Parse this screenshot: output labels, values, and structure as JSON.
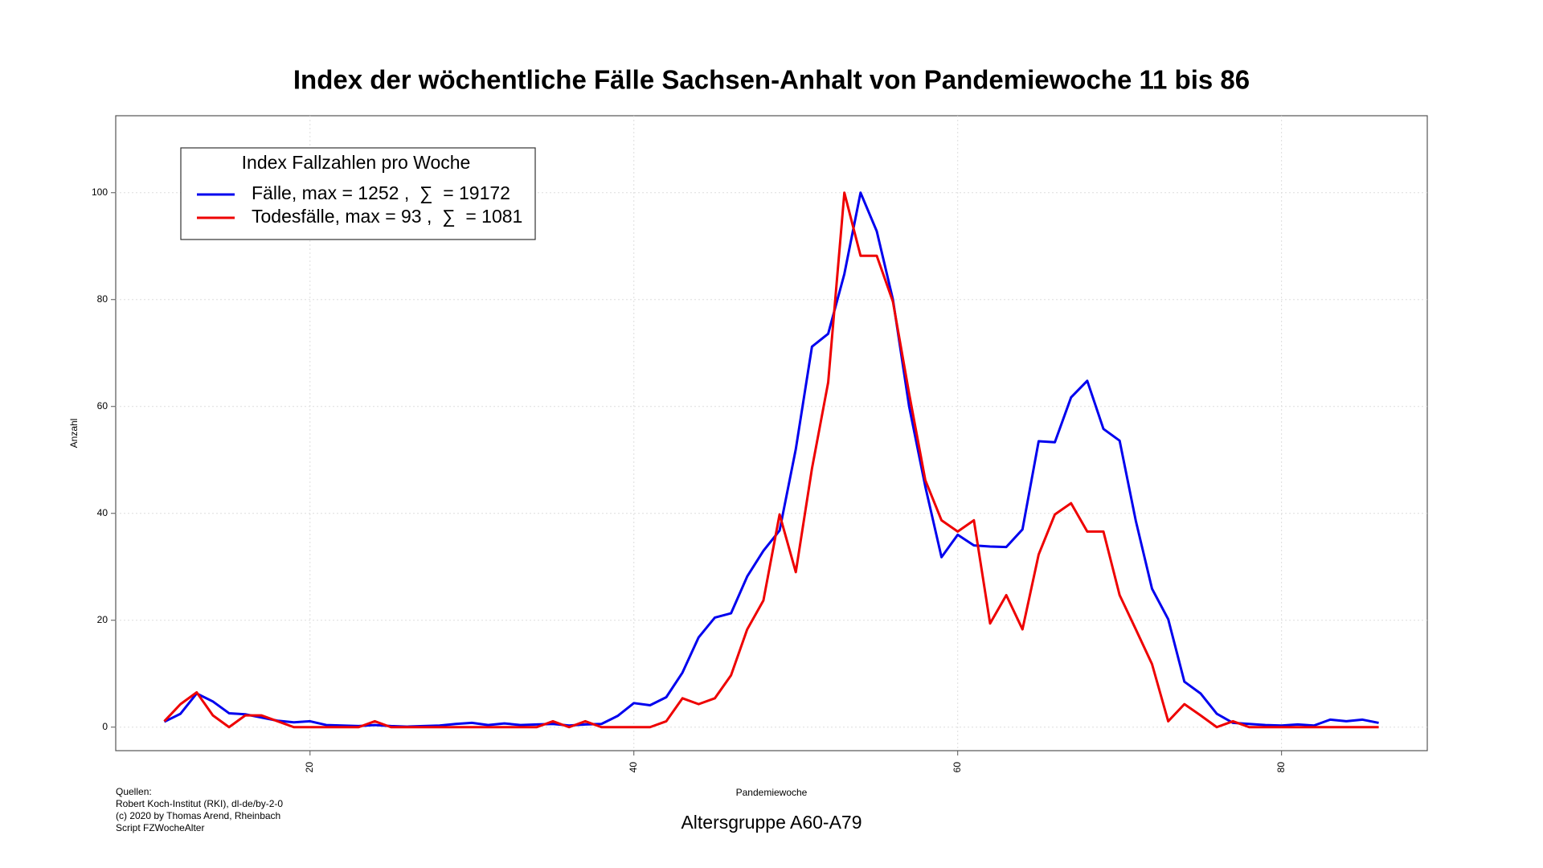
{
  "chart_data": {
    "type": "line",
    "title": "Index der wöchentliche Fälle Sachsen-Anhalt von Pandemiewoche 11 bis 86",
    "subtitle": "Altersgruppe A60-A79",
    "xlabel": "Pandemiewoche",
    "ylabel": "Anzahl",
    "legend_title": "Index Fallzahlen pro Woche",
    "legend_position": "top-left",
    "notes": [
      "Quellen:",
      "Robert Koch-Institut (RKI), dl-de/by-2-0",
      "(c) 2020 by Thomas Arend, Rheinbach",
      "Script FZWocheAlter"
    ],
    "grid": true,
    "x": [
      11,
      12,
      13,
      14,
      15,
      16,
      17,
      18,
      19,
      20,
      21,
      22,
      23,
      24,
      25,
      26,
      27,
      28,
      29,
      30,
      31,
      32,
      33,
      34,
      35,
      36,
      37,
      38,
      39,
      40,
      41,
      42,
      43,
      44,
      45,
      46,
      47,
      48,
      49,
      50,
      51,
      52,
      53,
      54,
      55,
      56,
      57,
      58,
      59,
      60,
      61,
      62,
      63,
      64,
      65,
      66,
      67,
      68,
      69,
      70,
      71,
      72,
      73,
      74,
      75,
      76,
      77,
      78,
      79,
      80,
      81,
      82,
      83,
      84,
      85,
      86
    ],
    "series": [
      {
        "name": "Fälle, max = 1252 ,  ∑  = 19172",
        "color": "#0000ee",
        "values": [
          1,
          2.5,
          6.3,
          4.8,
          2.6,
          2.4,
          1.8,
          1.2,
          0.9,
          1.1,
          0.4,
          0.3,
          0.2,
          0.4,
          0.2,
          0.1,
          0.2,
          0.3,
          0.6,
          0.8,
          0.4,
          0.7,
          0.4,
          0.5,
          0.6,
          0.3,
          0.5,
          0.6,
          2.1,
          4.5,
          4.1,
          5.6,
          10.2,
          16.8,
          20.5,
          21.3,
          28.2,
          33,
          36.8,
          52,
          71.2,
          73.6,
          84.8,
          100,
          92.8,
          80,
          60,
          45,
          31.8,
          36,
          34,
          33.8,
          33.7,
          37,
          53.5,
          53.3,
          61.7,
          64.8,
          55.8,
          53.6,
          38.6,
          25.9,
          20.2,
          8.5,
          6.3,
          2.5,
          0.8,
          0.6,
          0.4,
          0.3,
          0.5,
          0.3,
          1.4,
          1.1,
          1.4,
          0.8
        ]
      },
      {
        "name": "Todesfälle, max = 93 ,  ∑  = 1081",
        "color": "#ee0000",
        "values": [
          1.1,
          4.3,
          6.5,
          2.2,
          0,
          2.2,
          2.2,
          1.1,
          0,
          0,
          0,
          0,
          0,
          1.1,
          0,
          0,
          0,
          0,
          0,
          0,
          0,
          0,
          0,
          0,
          1.1,
          0,
          1.1,
          0,
          0,
          0,
          0,
          1.1,
          5.4,
          4.3,
          5.4,
          9.7,
          18.3,
          23.7,
          39.8,
          29,
          48.4,
          64.5,
          100,
          88.2,
          88.2,
          79.6,
          62.4,
          46.2,
          38.7,
          36.6,
          38.7,
          19.4,
          24.7,
          18.3,
          32.3,
          39.8,
          41.9,
          36.6,
          36.6,
          24.7,
          18.3,
          11.8,
          1.1,
          4.3,
          2.2,
          0,
          1.1,
          0,
          0,
          0,
          0,
          0,
          0,
          0,
          0,
          0
        ]
      }
    ],
    "xlim": [
      8,
      89
    ],
    "xticks": [
      20,
      40,
      60,
      80
    ],
    "ylim": [
      -4.4,
      114.4
    ],
    "yticks": [
      0,
      20,
      40,
      60,
      80,
      100
    ]
  }
}
